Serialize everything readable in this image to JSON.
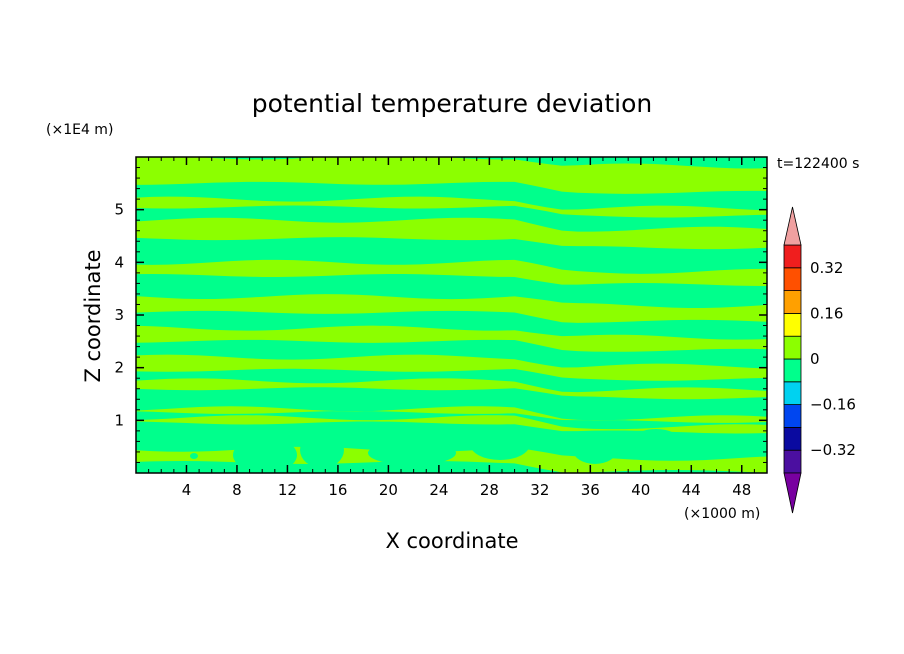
{
  "chart_data": {
    "type": "heatmap",
    "title": "potential temperature deviation",
    "time_label": "t=122400 s",
    "xlabel": "X coordinate",
    "ylabel": "Z coordinate",
    "x_unit": "(×1000 m)",
    "y_unit": "(×1E4 m)",
    "xlim": [
      0,
      50
    ],
    "ylim": [
      0,
      6
    ],
    "x_ticks": [
      "4",
      "8",
      "12",
      "16",
      "20",
      "24",
      "28",
      "32",
      "36",
      "40",
      "44",
      "48"
    ],
    "y_ticks": [
      "1",
      "2",
      "3",
      "4",
      "5"
    ],
    "colorbar": {
      "labels": [
        "0.32",
        "0.16",
        "0",
        "−0.16",
        "−0.32"
      ],
      "label_values": [
        0.32,
        0.16,
        0,
        -0.16,
        -0.32
      ],
      "levels": [
        -0.4,
        -0.32,
        -0.24,
        -0.16,
        -0.08,
        0,
        0.08,
        0.16,
        0.24,
        0.32,
        0.4
      ],
      "colors": [
        "#4b0fa0",
        "#0a0aa0",
        "#0046f0",
        "#00d2f0",
        "#00ff8c",
        "#8cff00",
        "#ffff00",
        "#ffa000",
        "#ff5000",
        "#f01e1e"
      ],
      "under_color": "#7800a0",
      "over_color": "#f0a0a0"
    },
    "field": {
      "background_range": [
        -0.08,
        0
      ],
      "background_color": "#00ff8c",
      "positive_band_range": [
        0,
        0.08
      ],
      "positive_band_color": "#8cff00",
      "bands_z": [
        [
          0.2,
          0.45
        ],
        [
          0.95,
          1.05
        ],
        [
          1.15,
          1.22
        ],
        [
          1.6,
          1.75
        ],
        [
          1.95,
          2.2
        ],
        [
          2.5,
          2.75
        ],
        [
          3.05,
          3.35
        ],
        [
          3.75,
          4.0
        ],
        [
          4.45,
          4.8
        ],
        [
          5.05,
          5.2
        ],
        [
          5.5,
          6.0
        ]
      ]
    }
  }
}
